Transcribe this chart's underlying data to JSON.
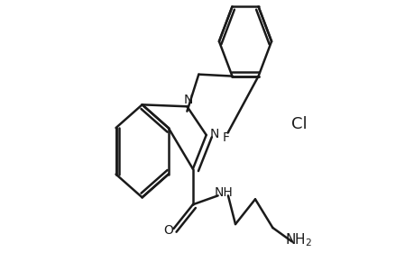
{
  "bg_color": "#ffffff",
  "line_color": "#1a1a1a",
  "line_width": 1.8,
  "font_size": 10,
  "figsize": [
    4.6,
    3.0
  ],
  "dpi": 100,
  "Cl_text": "Cl",
  "F_text": "F",
  "N1_text": "N",
  "N2_text": "N",
  "O_text": "O",
  "NH_text": "NH",
  "NH2_text": "NH",
  "NH2_sub": "2"
}
